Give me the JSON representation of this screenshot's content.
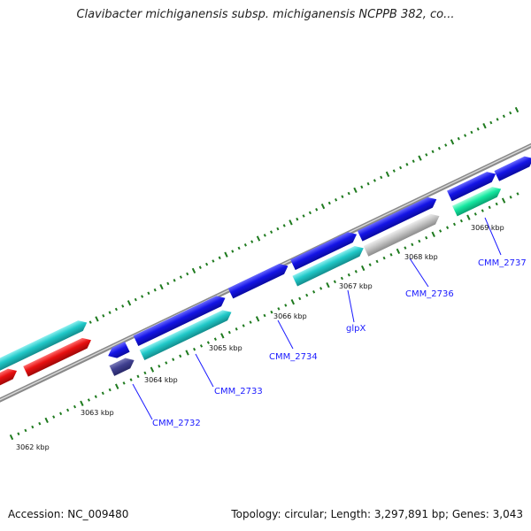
{
  "title": "Clavibacter michiganensis subsp. michiganensis NCPPB 382, co...",
  "footer": {
    "accession": "Accession: NC_009480",
    "summary": "Topology: circular; Length: 3,297,891 bp; Genes: 3,043"
  },
  "ticks": [
    {
      "label": "3062 kbp"
    },
    {
      "label": "3063 kbp"
    },
    {
      "label": "3064 kbp"
    },
    {
      "label": "3065 kbp"
    },
    {
      "label": "3066 kbp"
    },
    {
      "label": "3067 kbp"
    },
    {
      "label": "3068 kbp"
    },
    {
      "label": "3069 kbp"
    }
  ],
  "genes": [
    {
      "label": "CMM_2732"
    },
    {
      "label": "CMM_2733"
    },
    {
      "label": "CMM_2734"
    },
    {
      "label": "glpX"
    },
    {
      "label": "CMM_2736"
    },
    {
      "label": "CMM_2737"
    }
  ],
  "colors": {
    "backbone": "#909090",
    "forward_gene": "#1010e0",
    "cds_cyan": "#20c8c8",
    "rrna_red": "#e01010",
    "dark_purple": "#404090",
    "gray_feature": "#bcbcbc",
    "green_feature": "#10e8a0",
    "tick_green": "#1e7a1e",
    "label_blue": "#1a1aff"
  }
}
